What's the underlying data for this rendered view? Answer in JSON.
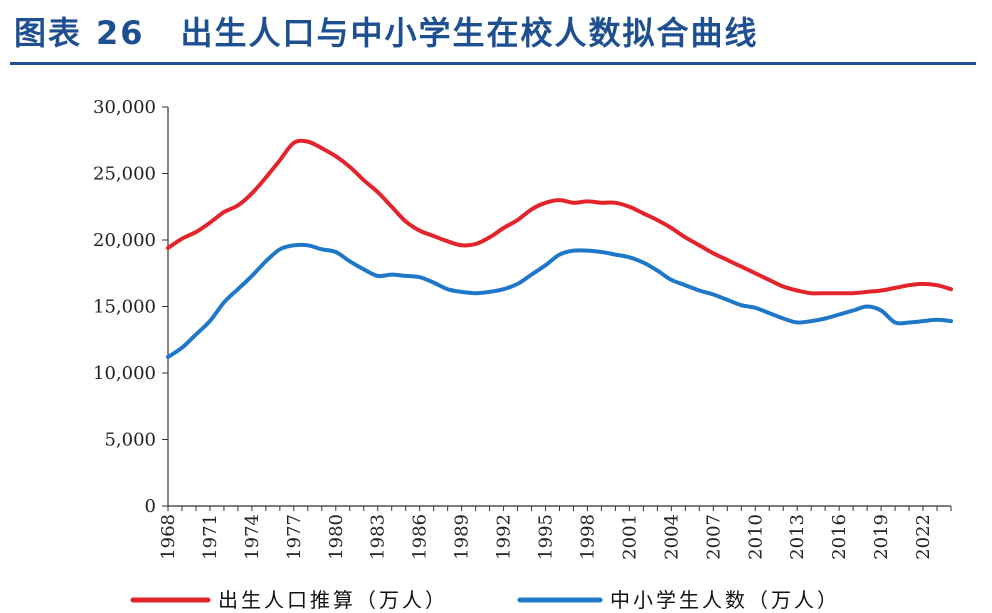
{
  "figure": {
    "label": "图表",
    "number": "26",
    "title": "出生人口与中小学生在校人数拟合曲线"
  },
  "chart_data": {
    "type": "line",
    "title": "出生人口与中小学生在校人数拟合曲线",
    "xlabel": "",
    "ylabel": "",
    "xlim": [
      1968,
      2024
    ],
    "ylim": [
      0,
      30000
    ],
    "yticks": [
      0,
      5000,
      10000,
      15000,
      20000,
      25000,
      30000
    ],
    "ytick_labels": [
      "0",
      "5,000",
      "10,000",
      "15,000",
      "20,000",
      "25,000",
      "30,000"
    ],
    "xticks": [
      1968,
      1971,
      1974,
      1977,
      1980,
      1983,
      1986,
      1989,
      1992,
      1995,
      1998,
      2001,
      2004,
      2007,
      2010,
      2013,
      2016,
      2019,
      2022
    ],
    "xtick_labels": [
      "1968",
      "1971",
      "1974",
      "1977",
      "1980",
      "1983",
      "1986",
      "1989",
      "1992",
      "1995",
      "1998",
      "2001",
      "2004",
      "2007",
      "2010",
      "2013",
      "2016",
      "2019",
      "2022"
    ],
    "grid": false,
    "legend_position": "bottom",
    "series": [
      {
        "name": "出生人口推算（万人）",
        "color": "#e3242b",
        "x": [
          1968,
          1969,
          1970,
          1971,
          1972,
          1973,
          1974,
          1975,
          1976,
          1977,
          1978,
          1979,
          1980,
          1981,
          1982,
          1983,
          1984,
          1985,
          1986,
          1987,
          1988,
          1989,
          1990,
          1991,
          1992,
          1993,
          1994,
          1995,
          1996,
          1997,
          1998,
          1999,
          2000,
          2001,
          2002,
          2003,
          2004,
          2005,
          2006,
          2007,
          2008,
          2009,
          2010,
          2011,
          2012,
          2013,
          2014,
          2015,
          2016,
          2017,
          2018,
          2019,
          2020,
          2021,
          2022,
          2023,
          2024
        ],
        "values": [
          19400,
          20100,
          20600,
          21300,
          22100,
          22600,
          23500,
          24700,
          26000,
          27300,
          27400,
          26900,
          26300,
          25500,
          24500,
          23600,
          22500,
          21400,
          20700,
          20300,
          19900,
          19600,
          19700,
          20200,
          20900,
          21500,
          22300,
          22800,
          23000,
          22800,
          22900,
          22800,
          22800,
          22500,
          22000,
          21500,
          20900,
          20200,
          19600,
          19000,
          18500,
          18000,
          17500,
          17000,
          16500,
          16200,
          16000,
          16000,
          16000,
          16000,
          16100,
          16200,
          16400,
          16600,
          16700,
          16600,
          16300
        ]
      },
      {
        "name": "中小学生人数（万人）",
        "color": "#1f77c8",
        "x": [
          1968,
          1969,
          1970,
          1971,
          1972,
          1973,
          1974,
          1975,
          1976,
          1977,
          1978,
          1979,
          1980,
          1981,
          1982,
          1983,
          1984,
          1985,
          1986,
          1987,
          1988,
          1989,
          1990,
          1991,
          1992,
          1993,
          1994,
          1995,
          1996,
          1997,
          1998,
          1999,
          2000,
          2001,
          2002,
          2003,
          2004,
          2005,
          2006,
          2007,
          2008,
          2009,
          2010,
          2011,
          2012,
          2013,
          2014,
          2015,
          2016,
          2017,
          2018,
          2019,
          2020,
          2021,
          2022,
          2023,
          2024
        ],
        "values": [
          11200,
          11900,
          12900,
          13900,
          15300,
          16300,
          17300,
          18400,
          19300,
          19600,
          19600,
          19300,
          19100,
          18400,
          17800,
          17300,
          17400,
          17300,
          17200,
          16800,
          16300,
          16100,
          16000,
          16100,
          16300,
          16700,
          17400,
          18100,
          18900,
          19200,
          19200,
          19100,
          18900,
          18700,
          18300,
          17700,
          17000,
          16600,
          16200,
          15900,
          15500,
          15100,
          14900,
          14500,
          14100,
          13800,
          13900,
          14100,
          14400,
          14700,
          15000,
          14700,
          13800,
          13800,
          13900,
          14000,
          13900
        ]
      }
    ]
  }
}
